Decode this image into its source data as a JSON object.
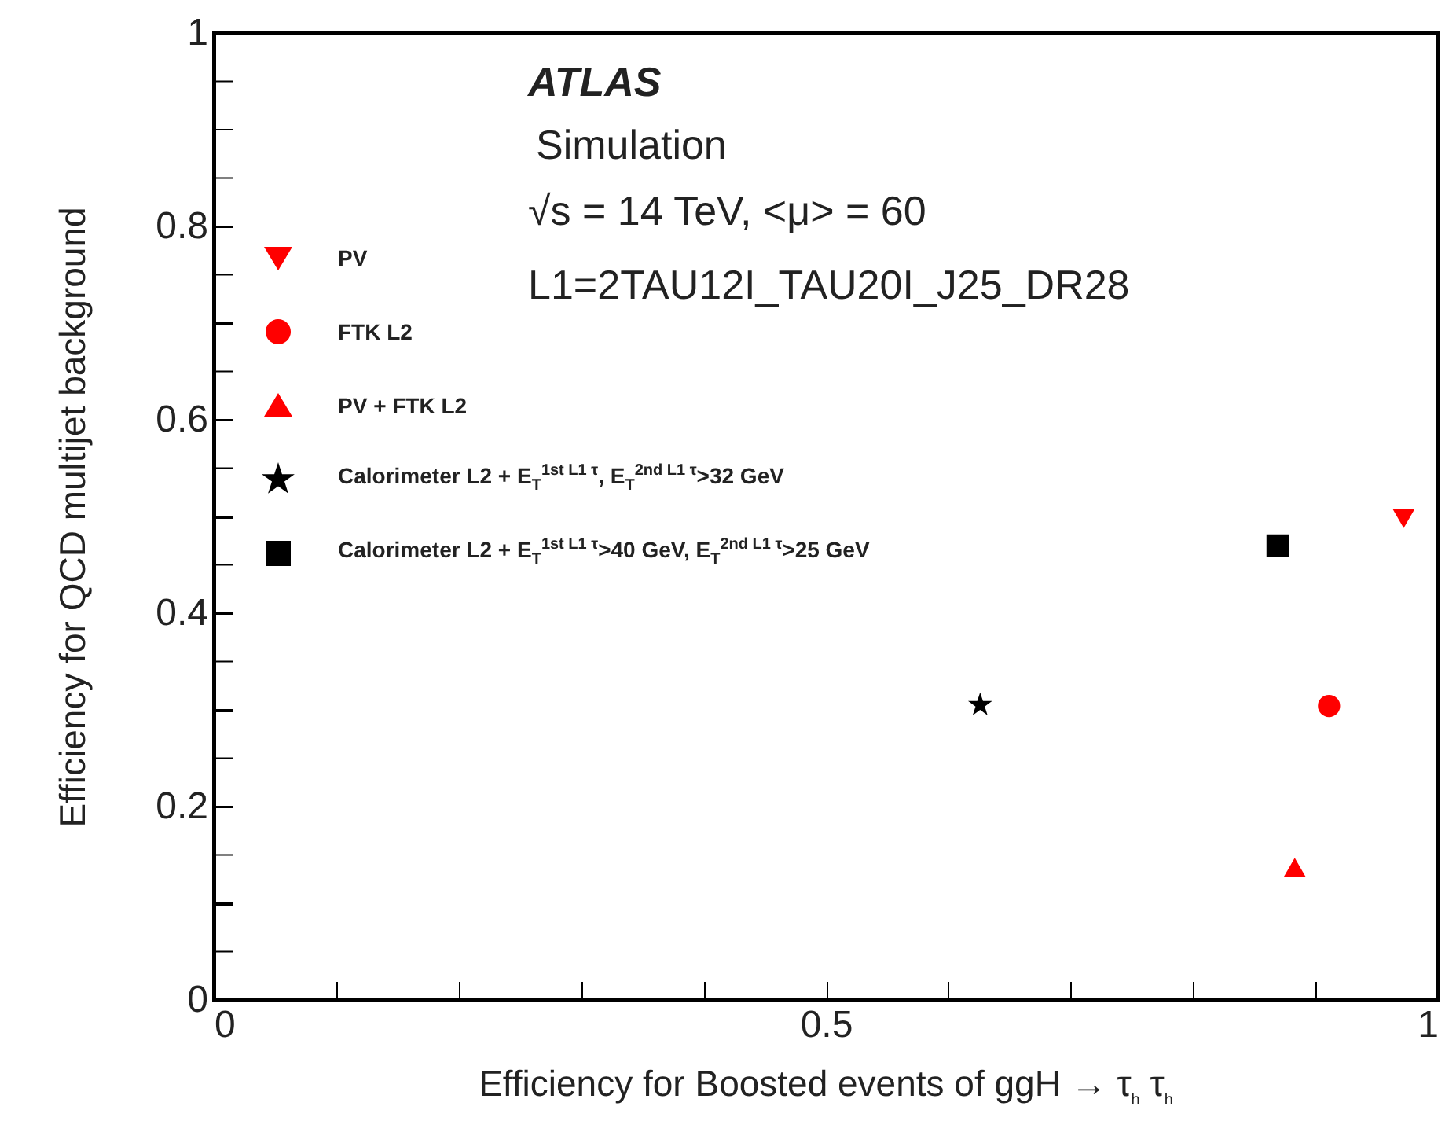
{
  "chart_data": {
    "type": "scatter",
    "xlabel": "Efficiency for Boosted events of ggH → τ$_{h}$ τ$_{h}$",
    "ylabel": "Efficiency for QCD multijet background",
    "annotations": [
      "ATLAS",
      "Simulation",
      "√s = 14 TeV, <μ> = 60",
      "L1=2TAU12I_TAU20I_J25_DR28"
    ],
    "series": [
      {
        "name": "PV",
        "color": "#ff0000",
        "marker": "triangle-down",
        "x": [
          0.972
        ],
        "values": [
          0.498
        ]
      },
      {
        "name": "FTK L2",
        "color": "#ff0000",
        "marker": "circle",
        "x": [
          0.911
        ],
        "values": [
          0.304
        ]
      },
      {
        "name": "PV + FTK L2",
        "color": "#ff0000",
        "marker": "triangle",
        "x": [
          0.883
        ],
        "values": [
          0.137
        ]
      },
      {
        "name": "Calorimeter L2 + E$_{T}$$^{1st L1 τ}$, E$_{T}$$^{2nd L1 τ}$>32 GeV",
        "color": "#000000",
        "marker": "star",
        "x": [
          0.626
        ],
        "values": [
          0.305
        ]
      },
      {
        "name": "Calorimeter L2 + E$_{T}$$^{1st L1 τ}$>40 GeV, E$_{T}$$^{2nd L1 τ}$>25 GeV",
        "color": "#000000",
        "marker": "square",
        "x": [
          0.869
        ],
        "values": [
          0.47
        ]
      }
    ],
    "xlim": [
      0,
      1
    ],
    "xticks": [
      0,
      {
        "value": 0.1,
        "label": null
      },
      {
        "value": 0.2,
        "label": null
      },
      {
        "value": 0.3,
        "label": null
      },
      {
        "value": 0.4,
        "label": null
      },
      0.5,
      {
        "value": 0.6,
        "label": null
      },
      {
        "value": 0.7,
        "label": null
      },
      {
        "value": 0.8,
        "label": null
      },
      {
        "value": 0.9,
        "label": null
      },
      1
    ],
    "ylim": [
      0,
      1
    ],
    "yticks": [
      0,
      {
        "value": 0.05,
        "label": null
      },
      {
        "value": 0.1,
        "label": null
      },
      {
        "value": 0.15,
        "label": null
      },
      0.2,
      {
        "value": 0.25,
        "label": null
      },
      {
        "value": 0.3,
        "label": null
      },
      {
        "value": 0.35,
        "label": null
      },
      0.4,
      {
        "value": 0.45,
        "label": null
      },
      {
        "value": 0.5,
        "label": null
      },
      {
        "value": 0.55,
        "label": null
      },
      0.6,
      {
        "value": 0.65,
        "label": null
      },
      {
        "value": 0.7,
        "label": null
      },
      {
        "value": 0.75,
        "label": null
      },
      0.8,
      {
        "value": 0.85,
        "label": null
      },
      {
        "value": 0.9,
        "label": null
      },
      {
        "value": 0.95,
        "label": null
      },
      1
    ],
    "grid": false,
    "legend": "top left"
  }
}
